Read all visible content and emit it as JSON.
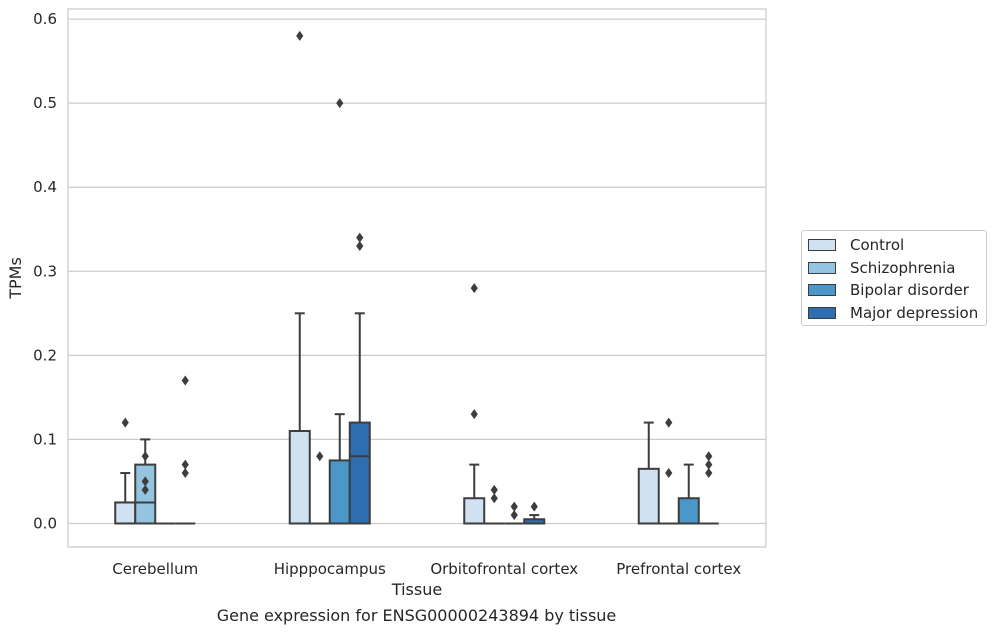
{
  "caption": "Gene expression for ENSG00000243894 by tissue",
  "chart_data": {
    "type": "box",
    "xlabel": "Tissue",
    "ylabel": "TPMs",
    "ylim": [
      -0.028,
      0.612
    ],
    "yticks": [
      "0.0",
      "0.1",
      "0.2",
      "0.3",
      "0.4",
      "0.5",
      "0.6"
    ],
    "grid": true,
    "legend_position": "right",
    "categories": [
      "Cerebellum",
      "Hipppocampus",
      "Orbitofrontal cortex",
      "Prefrontal cortex"
    ],
    "series": [
      {
        "name": "Control",
        "color": "#d0e1f2",
        "boxes": [
          {
            "q1": 0.0,
            "median": 0.025,
            "q3": 0.025,
            "whisker_low": 0.0,
            "whisker_high": 0.06,
            "outliers": [
              0.12
            ]
          },
          {
            "q1": 0.0,
            "median": 0.0,
            "q3": 0.11,
            "whisker_low": 0.0,
            "whisker_high": 0.25,
            "outliers": [
              0.58
            ]
          },
          {
            "q1": 0.0,
            "median": 0.0,
            "q3": 0.03,
            "whisker_low": 0.0,
            "whisker_high": 0.07,
            "outliers": [
              0.13,
              0.28
            ]
          },
          {
            "q1": 0.0,
            "median": 0.0,
            "q3": 0.065,
            "whisker_low": 0.0,
            "whisker_high": 0.12,
            "outliers": []
          }
        ]
      },
      {
        "name": "Schizophrenia",
        "color": "#94c4df",
        "boxes": [
          {
            "q1": 0.0,
            "median": 0.025,
            "q3": 0.07,
            "whisker_low": 0.0,
            "whisker_high": 0.1,
            "outliers": [
              0.04,
              0.05,
              0.08
            ]
          },
          {
            "q1": 0.0,
            "median": 0.0,
            "q3": 0.0,
            "whisker_low": 0.0,
            "whisker_high": 0.0,
            "outliers": [
              0.08
            ]
          },
          {
            "q1": 0.0,
            "median": 0.0,
            "q3": 0.0,
            "whisker_low": 0.0,
            "whisker_high": 0.0,
            "outliers": [
              0.03,
              0.04
            ]
          },
          {
            "q1": 0.0,
            "median": 0.0,
            "q3": 0.0,
            "whisker_low": 0.0,
            "whisker_high": 0.0,
            "outliers": [
              0.06,
              0.12
            ]
          }
        ]
      },
      {
        "name": "Bipolar disorder",
        "color": "#4a98c9",
        "boxes": [
          {
            "q1": 0.0,
            "median": 0.0,
            "q3": 0.0,
            "whisker_low": 0.0,
            "whisker_high": 0.0,
            "outliers": []
          },
          {
            "q1": 0.0,
            "median": 0.0,
            "q3": 0.075,
            "whisker_low": 0.0,
            "whisker_high": 0.13,
            "outliers": [
              0.5
            ]
          },
          {
            "q1": 0.0,
            "median": 0.0,
            "q3": 0.0,
            "whisker_low": 0.0,
            "whisker_high": 0.0,
            "outliers": [
              0.01,
              0.02
            ]
          },
          {
            "q1": 0.0,
            "median": 0.0,
            "q3": 0.03,
            "whisker_low": 0.0,
            "whisker_high": 0.07,
            "outliers": []
          }
        ]
      },
      {
        "name": "Major depression",
        "color": "#2e6eb0",
        "boxes": [
          {
            "q1": 0.0,
            "median": 0.0,
            "q3": 0.0,
            "whisker_low": 0.0,
            "whisker_high": 0.0,
            "outliers": [
              0.06,
              0.07,
              0.17
            ]
          },
          {
            "q1": 0.0,
            "median": 0.08,
            "q3": 0.12,
            "whisker_low": 0.0,
            "whisker_high": 0.25,
            "outliers": [
              0.33,
              0.34
            ]
          },
          {
            "q1": 0.0,
            "median": 0.0,
            "q3": 0.005,
            "whisker_low": 0.0,
            "whisker_high": 0.01,
            "outliers": [
              0.02
            ]
          },
          {
            "q1": 0.0,
            "median": 0.0,
            "q3": 0.0,
            "whisker_low": 0.0,
            "whisker_high": 0.0,
            "outliers": [
              0.06,
              0.07,
              0.08
            ]
          }
        ]
      }
    ]
  }
}
